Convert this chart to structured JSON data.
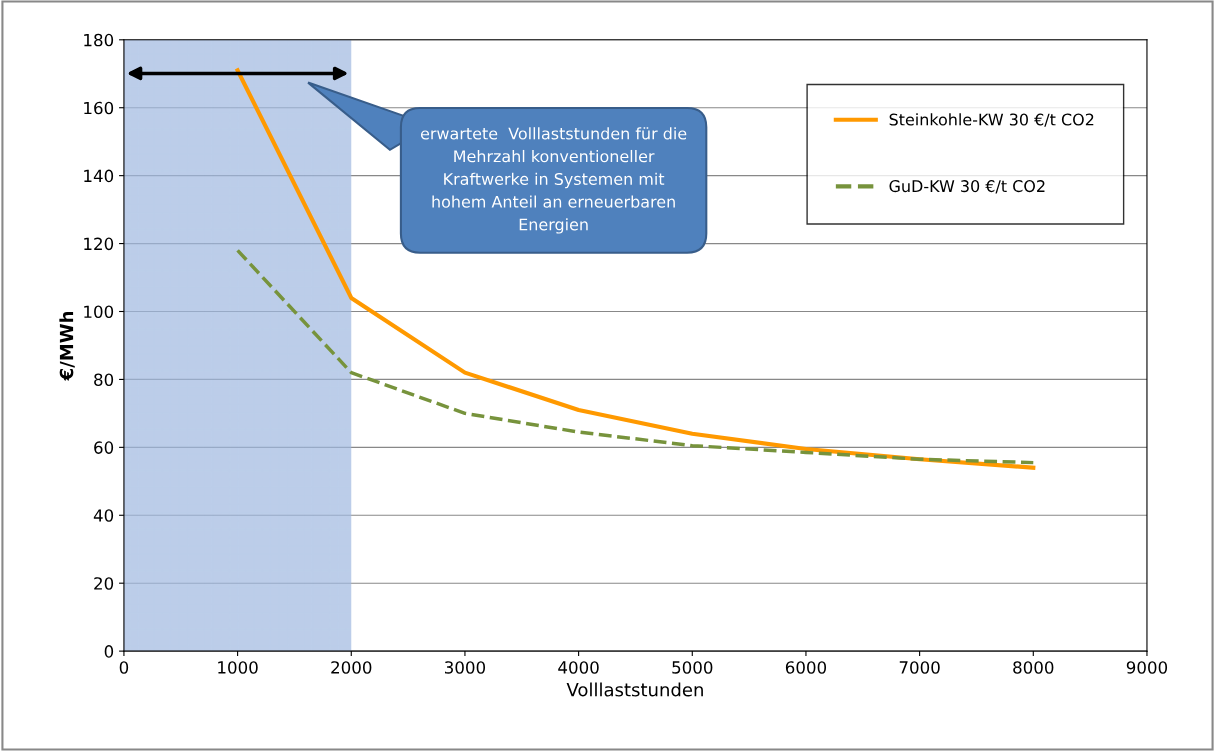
{
  "chart_data": {
    "type": "line",
    "xlabel": "Volllaststunden",
    "ylabel": "€/MWh",
    "x": [
      1000,
      2000,
      3000,
      4000,
      5000,
      6000,
      7000,
      8000
    ],
    "series": [
      {
        "name": "Steinkohle-KW 30 €/t CO2",
        "color": "#ff9900",
        "line_style": "solid",
        "values": [
          171,
          104,
          82,
          71,
          64,
          59.5,
          56.5,
          54
        ]
      },
      {
        "name": "GuD-KW 30 €/t CO2",
        "color": "#77933c",
        "line_style": "dashed",
        "values": [
          118,
          82,
          70,
          64.5,
          60.5,
          58.5,
          56.5,
          55.5
        ]
      }
    ],
    "xlim": [
      0,
      9000
    ],
    "xticks": [
      0,
      1000,
      2000,
      3000,
      4000,
      5000,
      6000,
      7000,
      8000,
      9000
    ],
    "ylim": [
      0,
      180
    ],
    "yticks": [
      0,
      20,
      40,
      60,
      80,
      100,
      120,
      140,
      160,
      180
    ],
    "bands": [
      {
        "axis": "x",
        "from": 0,
        "to": 2000,
        "color": "#9fb8e0"
      }
    ],
    "annotations": [
      "erwartete  Volllaststunden für die\nMehrzahl konventioneller\nKraftwerke in Systemen mit\nhohem Anteil an erneuerbaren\nEnergien"
    ],
    "grid": "y",
    "legend": "top right",
    "marker": "none"
  }
}
